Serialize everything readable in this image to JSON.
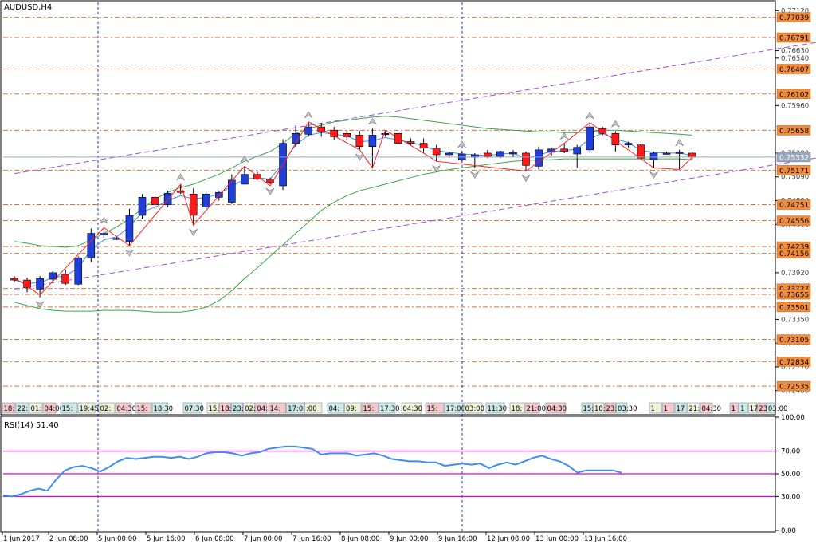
{
  "window": {
    "symbol_title": "AUDUSD,H4"
  },
  "indicator": {
    "title": "RSI(14) 51.40"
  },
  "colors": {
    "bull": "#1f3fd8",
    "bear": "#ff1a1a",
    "level_line": "#d4733c",
    "level_label_bg": "#f28c3b",
    "channel": "#9b4fe0",
    "bollinger": "#3aa64a",
    "zigzag": "#ff2020",
    "ma": "#3e8ef2",
    "rsi_line": "#3e8ef2",
    "rsi_levels": "#e000e0",
    "session_line": "#2433d8",
    "current_price": "#9aa8be"
  },
  "chart_data": [
    {
      "type": "candlestick",
      "title": "AUDUSD,H4",
      "ylim": [
        0.7238,
        0.7722
      ],
      "y_ticks": [
        "0.77120",
        "0.76630",
        "0.76540",
        "0.75960",
        "0.75380",
        "0.75090",
        "0.74800",
        "0.74510",
        "0.73920",
        "0.73350",
        "0.73060",
        "0.72770",
        "0.72480"
      ],
      "x_ticks": [
        "1 Jun 2017",
        "2 Jun 08:00",
        "5 Jun 00:00",
        "5 Jun 16:00",
        "6 Jun 08:00",
        "7 Jun 00:00",
        "7 Jun 16:00",
        "8 Jun 08:00",
        "9 Jun 00:00",
        "9 Jun 16:00",
        "12 Jun 08:00",
        "13 Jun 00:00",
        "13 Jun 16:00"
      ],
      "session_lines_x": [
        "5 Jun 00:00",
        "9 Jun 16:00"
      ],
      "current_price": "0.75332",
      "price_levels": [
        "0.77039",
        "0.76791",
        "0.76407",
        "0.76102",
        "0.75658",
        "0.75171",
        "0.74751",
        "0.74556",
        "0.74239",
        "0.74156",
        "0.73727",
        "0.73655",
        "0.73501",
        "0.73105",
        "0.72834",
        "0.72535"
      ],
      "candles": [
        {
          "o": 0.7385,
          "h": 0.7388,
          "l": 0.738,
          "c": 0.7383
        },
        {
          "o": 0.7383,
          "h": 0.7386,
          "l": 0.7368,
          "c": 0.7374
        },
        {
          "o": 0.7372,
          "h": 0.7388,
          "l": 0.7362,
          "c": 0.7385
        },
        {
          "o": 0.7384,
          "h": 0.7394,
          "l": 0.7382,
          "c": 0.7392
        },
        {
          "o": 0.739,
          "h": 0.7396,
          "l": 0.7377,
          "c": 0.7379
        },
        {
          "o": 0.7378,
          "h": 0.7412,
          "l": 0.7377,
          "c": 0.741
        },
        {
          "o": 0.741,
          "h": 0.7446,
          "l": 0.7405,
          "c": 0.744
        },
        {
          "o": 0.7438,
          "h": 0.7447,
          "l": 0.7435,
          "c": 0.744
        },
        {
          "o": 0.7434,
          "h": 0.7436,
          "l": 0.7432,
          "c": 0.7434
        },
        {
          "o": 0.743,
          "h": 0.747,
          "l": 0.7425,
          "c": 0.7462
        },
        {
          "o": 0.7462,
          "h": 0.7488,
          "l": 0.7458,
          "c": 0.7484
        },
        {
          "o": 0.7484,
          "h": 0.749,
          "l": 0.747,
          "c": 0.7475
        },
        {
          "o": 0.7475,
          "h": 0.7492,
          "l": 0.7472,
          "c": 0.7489
        },
        {
          "o": 0.7492,
          "h": 0.75,
          "l": 0.7488,
          "c": 0.749
        },
        {
          "o": 0.7488,
          "h": 0.7495,
          "l": 0.745,
          "c": 0.7462
        },
        {
          "o": 0.7472,
          "h": 0.749,
          "l": 0.747,
          "c": 0.7488
        },
        {
          "o": 0.7484,
          "h": 0.7492,
          "l": 0.748,
          "c": 0.749
        },
        {
          "o": 0.7478,
          "h": 0.7512,
          "l": 0.7476,
          "c": 0.7505
        },
        {
          "o": 0.75,
          "h": 0.7522,
          "l": 0.75,
          "c": 0.7512
        },
        {
          "o": 0.7512,
          "h": 0.7515,
          "l": 0.7505,
          "c": 0.7506
        },
        {
          "o": 0.7506,
          "h": 0.7508,
          "l": 0.75,
          "c": 0.7502
        },
        {
          "o": 0.7498,
          "h": 0.7555,
          "l": 0.7493,
          "c": 0.755
        },
        {
          "o": 0.755,
          "h": 0.7572,
          "l": 0.7546,
          "c": 0.7562
        },
        {
          "o": 0.7561,
          "h": 0.7576,
          "l": 0.7558,
          "c": 0.757
        },
        {
          "o": 0.757,
          "h": 0.7575,
          "l": 0.7558,
          "c": 0.7564
        },
        {
          "o": 0.7566,
          "h": 0.757,
          "l": 0.7554,
          "c": 0.7558
        },
        {
          "o": 0.7562,
          "h": 0.7565,
          "l": 0.7554,
          "c": 0.7558
        },
        {
          "o": 0.756,
          "h": 0.7565,
          "l": 0.7542,
          "c": 0.7546
        },
        {
          "o": 0.7546,
          "h": 0.7568,
          "l": 0.752,
          "c": 0.756
        },
        {
          "o": 0.7562,
          "h": 0.7566,
          "l": 0.7558,
          "c": 0.7562
        },
        {
          "o": 0.7562,
          "h": 0.7564,
          "l": 0.7546,
          "c": 0.755
        },
        {
          "o": 0.7552,
          "h": 0.7556,
          "l": 0.7548,
          "c": 0.755
        },
        {
          "o": 0.755,
          "h": 0.7556,
          "l": 0.7538,
          "c": 0.7544
        },
        {
          "o": 0.7544,
          "h": 0.7548,
          "l": 0.7528,
          "c": 0.7536
        },
        {
          "o": 0.7536,
          "h": 0.754,
          "l": 0.7532,
          "c": 0.7538
        },
        {
          "o": 0.753,
          "h": 0.754,
          "l": 0.7528,
          "c": 0.7537
        },
        {
          "o": 0.7533,
          "h": 0.7538,
          "l": 0.752,
          "c": 0.7536
        },
        {
          "o": 0.7538,
          "h": 0.7542,
          "l": 0.7532,
          "c": 0.7534
        },
        {
          "o": 0.7534,
          "h": 0.7541,
          "l": 0.7532,
          "c": 0.754
        },
        {
          "o": 0.7537,
          "h": 0.7542,
          "l": 0.7533,
          "c": 0.7539
        },
        {
          "o": 0.7538,
          "h": 0.754,
          "l": 0.7516,
          "c": 0.7523
        },
        {
          "o": 0.7522,
          "h": 0.7546,
          "l": 0.7518,
          "c": 0.7542
        },
        {
          "o": 0.7539,
          "h": 0.7545,
          "l": 0.7535,
          "c": 0.7543
        },
        {
          "o": 0.7543,
          "h": 0.755,
          "l": 0.7538,
          "c": 0.754
        },
        {
          "o": 0.7537,
          "h": 0.7548,
          "l": 0.752,
          "c": 0.7545
        },
        {
          "o": 0.7542,
          "h": 0.7575,
          "l": 0.754,
          "c": 0.757
        },
        {
          "o": 0.7568,
          "h": 0.757,
          "l": 0.756,
          "c": 0.7562
        },
        {
          "o": 0.7562,
          "h": 0.7565,
          "l": 0.754,
          "c": 0.7548
        },
        {
          "o": 0.7548,
          "h": 0.7552,
          "l": 0.7545,
          "c": 0.755
        },
        {
          "o": 0.7548,
          "h": 0.755,
          "l": 0.753,
          "c": 0.7532
        },
        {
          "o": 0.753,
          "h": 0.754,
          "l": 0.752,
          "c": 0.7538
        },
        {
          "o": 0.7538,
          "h": 0.754,
          "l": 0.7536,
          "c": 0.7538
        },
        {
          "o": 0.7538,
          "h": 0.7542,
          "l": 0.7518,
          "c": 0.7539
        },
        {
          "o": 0.7538,
          "h": 0.754,
          "l": 0.753,
          "c": 0.7533
        }
      ],
      "moving_average": [
        0.7383,
        0.7379,
        0.738,
        0.7386,
        0.7388,
        0.7398,
        0.742,
        0.7432,
        0.7436,
        0.7448,
        0.7466,
        0.7472,
        0.748,
        0.7486,
        0.7482,
        0.7484,
        0.7488,
        0.7498,
        0.7506,
        0.7508,
        0.7506,
        0.7526,
        0.7548,
        0.756,
        0.7563,
        0.7561,
        0.7559,
        0.7552,
        0.7553,
        0.7557,
        0.7554,
        0.7551,
        0.7547,
        0.7541,
        0.7539,
        0.7537,
        0.7536,
        0.7535,
        0.7537,
        0.7538,
        0.7531,
        0.7536,
        0.754,
        0.7541,
        0.7543,
        0.7556,
        0.7562,
        0.7555,
        0.7551,
        0.7541,
        0.7539,
        0.7538,
        0.7538,
        0.7535
      ],
      "bollinger_upper": [
        0.743,
        0.7428,
        0.7425,
        0.7424,
        0.7423,
        0.7425,
        0.7432,
        0.744,
        0.7448,
        0.7458,
        0.747,
        0.7482,
        0.749,
        0.7496,
        0.75,
        0.7506,
        0.7512,
        0.752,
        0.7528,
        0.7534,
        0.754,
        0.755,
        0.7562,
        0.7568,
        0.7572,
        0.7576,
        0.7578,
        0.758,
        0.7582,
        0.7583,
        0.7582,
        0.758,
        0.7578,
        0.7576,
        0.7574,
        0.7572,
        0.757,
        0.7568,
        0.7567,
        0.7566,
        0.7565,
        0.7564,
        0.7564,
        0.7563,
        0.7563,
        0.7564,
        0.7566,
        0.7566,
        0.7565,
        0.7564,
        0.7563,
        0.7562,
        0.7561,
        0.756
      ],
      "bollinger_lower": [
        0.7356,
        0.7352,
        0.7348,
        0.7346,
        0.7345,
        0.7345,
        0.7345,
        0.7346,
        0.7346,
        0.7346,
        0.7345,
        0.7344,
        0.7344,
        0.7344,
        0.7346,
        0.735,
        0.7358,
        0.737,
        0.7385,
        0.7398,
        0.7412,
        0.7426,
        0.744,
        0.7454,
        0.7468,
        0.7478,
        0.7486,
        0.7492,
        0.7496,
        0.75,
        0.7504,
        0.7508,
        0.7512,
        0.7515,
        0.7518,
        0.752,
        0.7522,
        0.7524,
        0.7526,
        0.7528,
        0.7529,
        0.753,
        0.753,
        0.7531,
        0.7531,
        0.7531,
        0.7531,
        0.7531,
        0.7531,
        0.7531,
        0.7531,
        0.7531,
        0.7531,
        0.753
      ],
      "zigzag": [
        [
          0,
          0.7386
        ],
        [
          2,
          0.7365
        ],
        [
          7,
          0.7447
        ],
        [
          9,
          0.7425
        ],
        [
          13,
          0.75
        ],
        [
          14,
          0.745
        ],
        [
          18,
          0.7522
        ],
        [
          20,
          0.7498
        ],
        [
          23,
          0.7576
        ],
        [
          27,
          0.7542
        ],
        [
          28,
          0.752
        ],
        [
          29,
          0.7566
        ],
        [
          32,
          0.7538
        ],
        [
          33,
          0.7528
        ],
        [
          40,
          0.7516
        ],
        [
          43,
          0.755
        ],
        [
          45,
          0.7575
        ],
        [
          50,
          0.752
        ],
        [
          52,
          0.7518
        ],
        [
          53,
          0.7533
        ]
      ],
      "channel_lines": [
        {
          "from": [
            0,
            0.7372
          ],
          "to": [
            65,
            0.7538
          ]
        },
        {
          "from": [
            0,
            0.7513
          ],
          "to": [
            65,
            0.7679
          ]
        }
      ],
      "fractal_up": [
        7,
        13,
        18,
        23,
        28,
        35,
        43,
        45,
        47,
        52
      ],
      "fractal_down": [
        2,
        9,
        14,
        20,
        27,
        33,
        36,
        40,
        50
      ]
    },
    {
      "type": "line",
      "title": "RSI(14) 51.40",
      "ylim": [
        0,
        100
      ],
      "y_ticks": [
        "100.00",
        "70.00",
        "50.00",
        "30.00",
        "0.00"
      ],
      "levels": [
        70,
        50,
        30
      ],
      "values": [
        31,
        30,
        32,
        35,
        37,
        35,
        45,
        53,
        56,
        57,
        55,
        52,
        56,
        61,
        64,
        63,
        64,
        65,
        65,
        64,
        65,
        63,
        65,
        68,
        69,
        69,
        68,
        66,
        68,
        69,
        72,
        73,
        74,
        74,
        73,
        72,
        67,
        68,
        68,
        68,
        66,
        67,
        68,
        66,
        63,
        62,
        61,
        61,
        60,
        60,
        57,
        58,
        59,
        58,
        59,
        55,
        58,
        60,
        58,
        61,
        64,
        66,
        63,
        61,
        57,
        51,
        53,
        53,
        53,
        53,
        51
      ]
    }
  ],
  "bottom_tags": {
    "groups": [
      [
        "18:",
        "22:",
        "01:",
        "04:00"
      ],
      [
        "15:",
        "19:45"
      ],
      [
        "02:",
        "04:30"
      ],
      [
        "15:",
        "18:30"
      ],
      [
        "07:30"
      ],
      [
        "15:",
        "18:",
        "23:",
        "02:",
        "04:30"
      ],
      [
        "14:",
        "17:00",
        ":00"
      ],
      [
        "04:",
        "09:",
        "15:",
        "17:30"
      ],
      [
        "04:30"
      ],
      [
        "15:",
        "17:00",
        "03:00"
      ],
      [
        "11:30"
      ],
      [
        "18:",
        "21:00"
      ],
      [
        "04:30"
      ],
      [
        "15:",
        "18:",
        "23:",
        "03:30"
      ],
      [
        "1",
        "1",
        "17",
        "21:30",
        "04:30"
      ],
      [
        "1",
        "1",
        "17:3",
        "23:",
        "03:00"
      ]
    ]
  }
}
